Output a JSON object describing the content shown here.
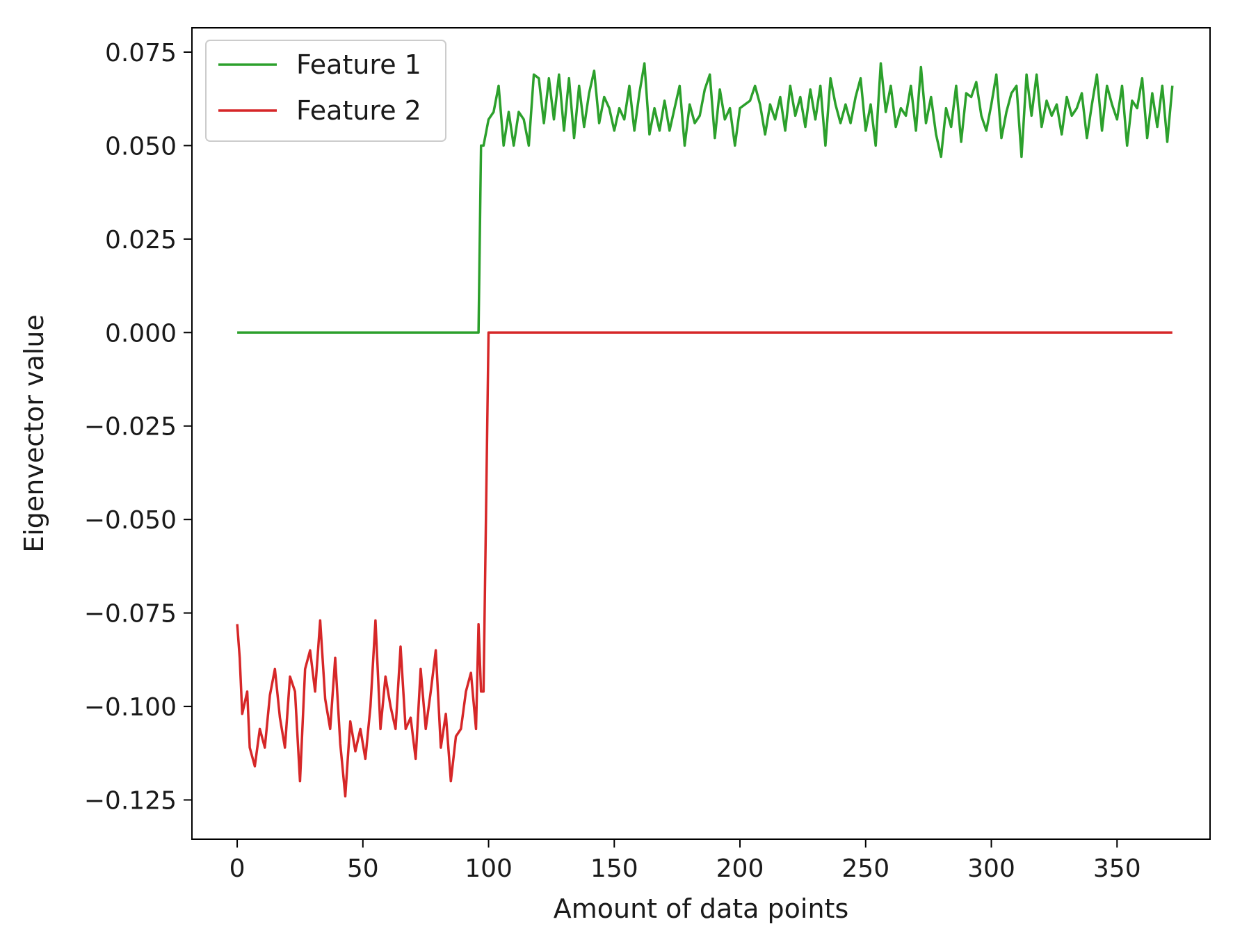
{
  "chart_data": {
    "type": "line",
    "xlabel": "Amount of data points",
    "ylabel": "Eigenvector value",
    "xlim": [
      -18,
      387
    ],
    "ylim": [
      -0.1355,
      0.0815
    ],
    "xticks": [
      0,
      50,
      100,
      150,
      200,
      250,
      300,
      350
    ],
    "xtick_labels": [
      "0",
      "50",
      "100",
      "150",
      "200",
      "250",
      "300",
      "350"
    ],
    "yticks": [
      0.075,
      0.05,
      0.025,
      0.0,
      -0.025,
      -0.05,
      -0.075,
      -0.1,
      -0.125
    ],
    "ytick_labels": [
      "0.075",
      "0.050",
      "0.025",
      "0.000",
      "−0.025",
      "−0.050",
      "−0.075",
      "−0.100",
      "−0.125"
    ],
    "grid": false,
    "legend_position": "top-left",
    "series": [
      {
        "name": "Feature 1",
        "color": "#2ca02c",
        "x": [
          0,
          96,
          97,
          98,
          100,
          102,
          104,
          106,
          108,
          110,
          112,
          114,
          116,
          118,
          120,
          122,
          124,
          126,
          128,
          130,
          132,
          134,
          136,
          138,
          140,
          142,
          144,
          146,
          148,
          150,
          152,
          154,
          156,
          158,
          160,
          162,
          164,
          166,
          168,
          170,
          172,
          174,
          176,
          178,
          180,
          182,
          184,
          186,
          188,
          190,
          192,
          194,
          196,
          198,
          200,
          202,
          204,
          206,
          208,
          210,
          212,
          214,
          216,
          218,
          220,
          222,
          224,
          226,
          228,
          230,
          232,
          234,
          236,
          238,
          240,
          242,
          244,
          246,
          248,
          250,
          252,
          254,
          256,
          258,
          260,
          262,
          264,
          266,
          268,
          270,
          272,
          274,
          276,
          278,
          280,
          282,
          284,
          286,
          288,
          290,
          292,
          294,
          296,
          298,
          300,
          302,
          304,
          306,
          308,
          310,
          312,
          314,
          316,
          318,
          320,
          322,
          324,
          326,
          328,
          330,
          332,
          334,
          336,
          338,
          340,
          342,
          344,
          346,
          348,
          350,
          352,
          354,
          356,
          358,
          360,
          362,
          364,
          366,
          368,
          370,
          372
        ],
        "y": [
          0.0,
          0.0,
          0.05,
          0.05,
          0.057,
          0.059,
          0.066,
          0.05,
          0.059,
          0.05,
          0.059,
          0.057,
          0.05,
          0.069,
          0.068,
          0.056,
          0.068,
          0.057,
          0.069,
          0.054,
          0.068,
          0.052,
          0.066,
          0.055,
          0.064,
          0.07,
          0.056,
          0.063,
          0.06,
          0.054,
          0.06,
          0.057,
          0.066,
          0.054,
          0.064,
          0.072,
          0.053,
          0.06,
          0.054,
          0.062,
          0.054,
          0.06,
          0.066,
          0.05,
          0.061,
          0.056,
          0.058,
          0.065,
          0.069,
          0.052,
          0.065,
          0.057,
          0.06,
          0.05,
          0.06,
          0.061,
          0.062,
          0.066,
          0.061,
          0.053,
          0.061,
          0.057,
          0.063,
          0.054,
          0.066,
          0.058,
          0.063,
          0.055,
          0.065,
          0.057,
          0.066,
          0.05,
          0.068,
          0.061,
          0.056,
          0.061,
          0.056,
          0.063,
          0.068,
          0.054,
          0.061,
          0.05,
          0.072,
          0.059,
          0.066,
          0.055,
          0.06,
          0.058,
          0.066,
          0.054,
          0.071,
          0.056,
          0.063,
          0.053,
          0.047,
          0.06,
          0.055,
          0.066,
          0.051,
          0.064,
          0.063,
          0.067,
          0.058,
          0.054,
          0.061,
          0.069,
          0.052,
          0.059,
          0.064,
          0.066,
          0.047,
          0.069,
          0.058,
          0.069,
          0.055,
          0.062,
          0.058,
          0.061,
          0.053,
          0.063,
          0.058,
          0.06,
          0.064,
          0.052,
          0.061,
          0.069,
          0.054,
          0.066,
          0.061,
          0.057,
          0.066,
          0.05,
          0.062,
          0.06,
          0.068,
          0.052,
          0.064,
          0.055,
          0.066,
          0.051,
          0.066
        ]
      },
      {
        "name": "Feature 2",
        "color": "#d62728",
        "x": [
          0,
          1,
          2,
          4,
          5,
          7,
          9,
          11,
          13,
          15,
          17,
          19,
          21,
          23,
          25,
          27,
          29,
          31,
          33,
          35,
          37,
          39,
          41,
          43,
          45,
          47,
          49,
          51,
          53,
          55,
          57,
          59,
          61,
          63,
          65,
          67,
          69,
          71,
          73,
          75,
          77,
          79,
          81,
          83,
          85,
          87,
          89,
          91,
          93,
          95,
          96,
          97,
          98,
          100,
          110,
          150,
          200,
          250,
          300,
          350,
          372
        ],
        "y": [
          -0.078,
          -0.087,
          -0.102,
          -0.096,
          -0.111,
          -0.116,
          -0.106,
          -0.111,
          -0.097,
          -0.09,
          -0.103,
          -0.111,
          -0.092,
          -0.096,
          -0.12,
          -0.09,
          -0.085,
          -0.096,
          -0.077,
          -0.098,
          -0.106,
          -0.087,
          -0.11,
          -0.124,
          -0.104,
          -0.112,
          -0.106,
          -0.114,
          -0.1,
          -0.077,
          -0.106,
          -0.092,
          -0.1,
          -0.106,
          -0.084,
          -0.106,
          -0.103,
          -0.114,
          -0.09,
          -0.106,
          -0.096,
          -0.085,
          -0.111,
          -0.102,
          -0.12,
          -0.108,
          -0.106,
          -0.096,
          -0.091,
          -0.106,
          -0.078,
          -0.096,
          -0.096,
          0.0,
          0.0,
          0.0,
          0.0,
          0.0,
          0.0,
          0.0,
          0.0
        ]
      }
    ]
  }
}
